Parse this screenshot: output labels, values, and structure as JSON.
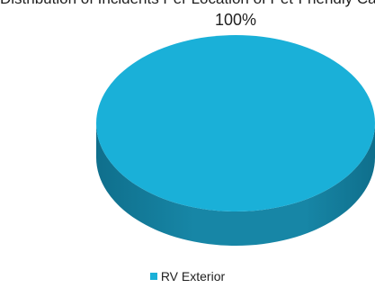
{
  "cropped_title": "Distribution of Incidents Per Location of Pet-Friendly Campgrounds Visited",
  "chart_data": {
    "type": "pie",
    "style": "3d",
    "title": "",
    "categories": [
      "RV Exterior"
    ],
    "values": [
      100
    ],
    "data_labels": [
      "100%"
    ],
    "legend_position": "bottom",
    "colors": {
      "top": "#1ab0d8",
      "side_dark": "#0f6f8c",
      "side_mid": "#1786a6"
    }
  }
}
